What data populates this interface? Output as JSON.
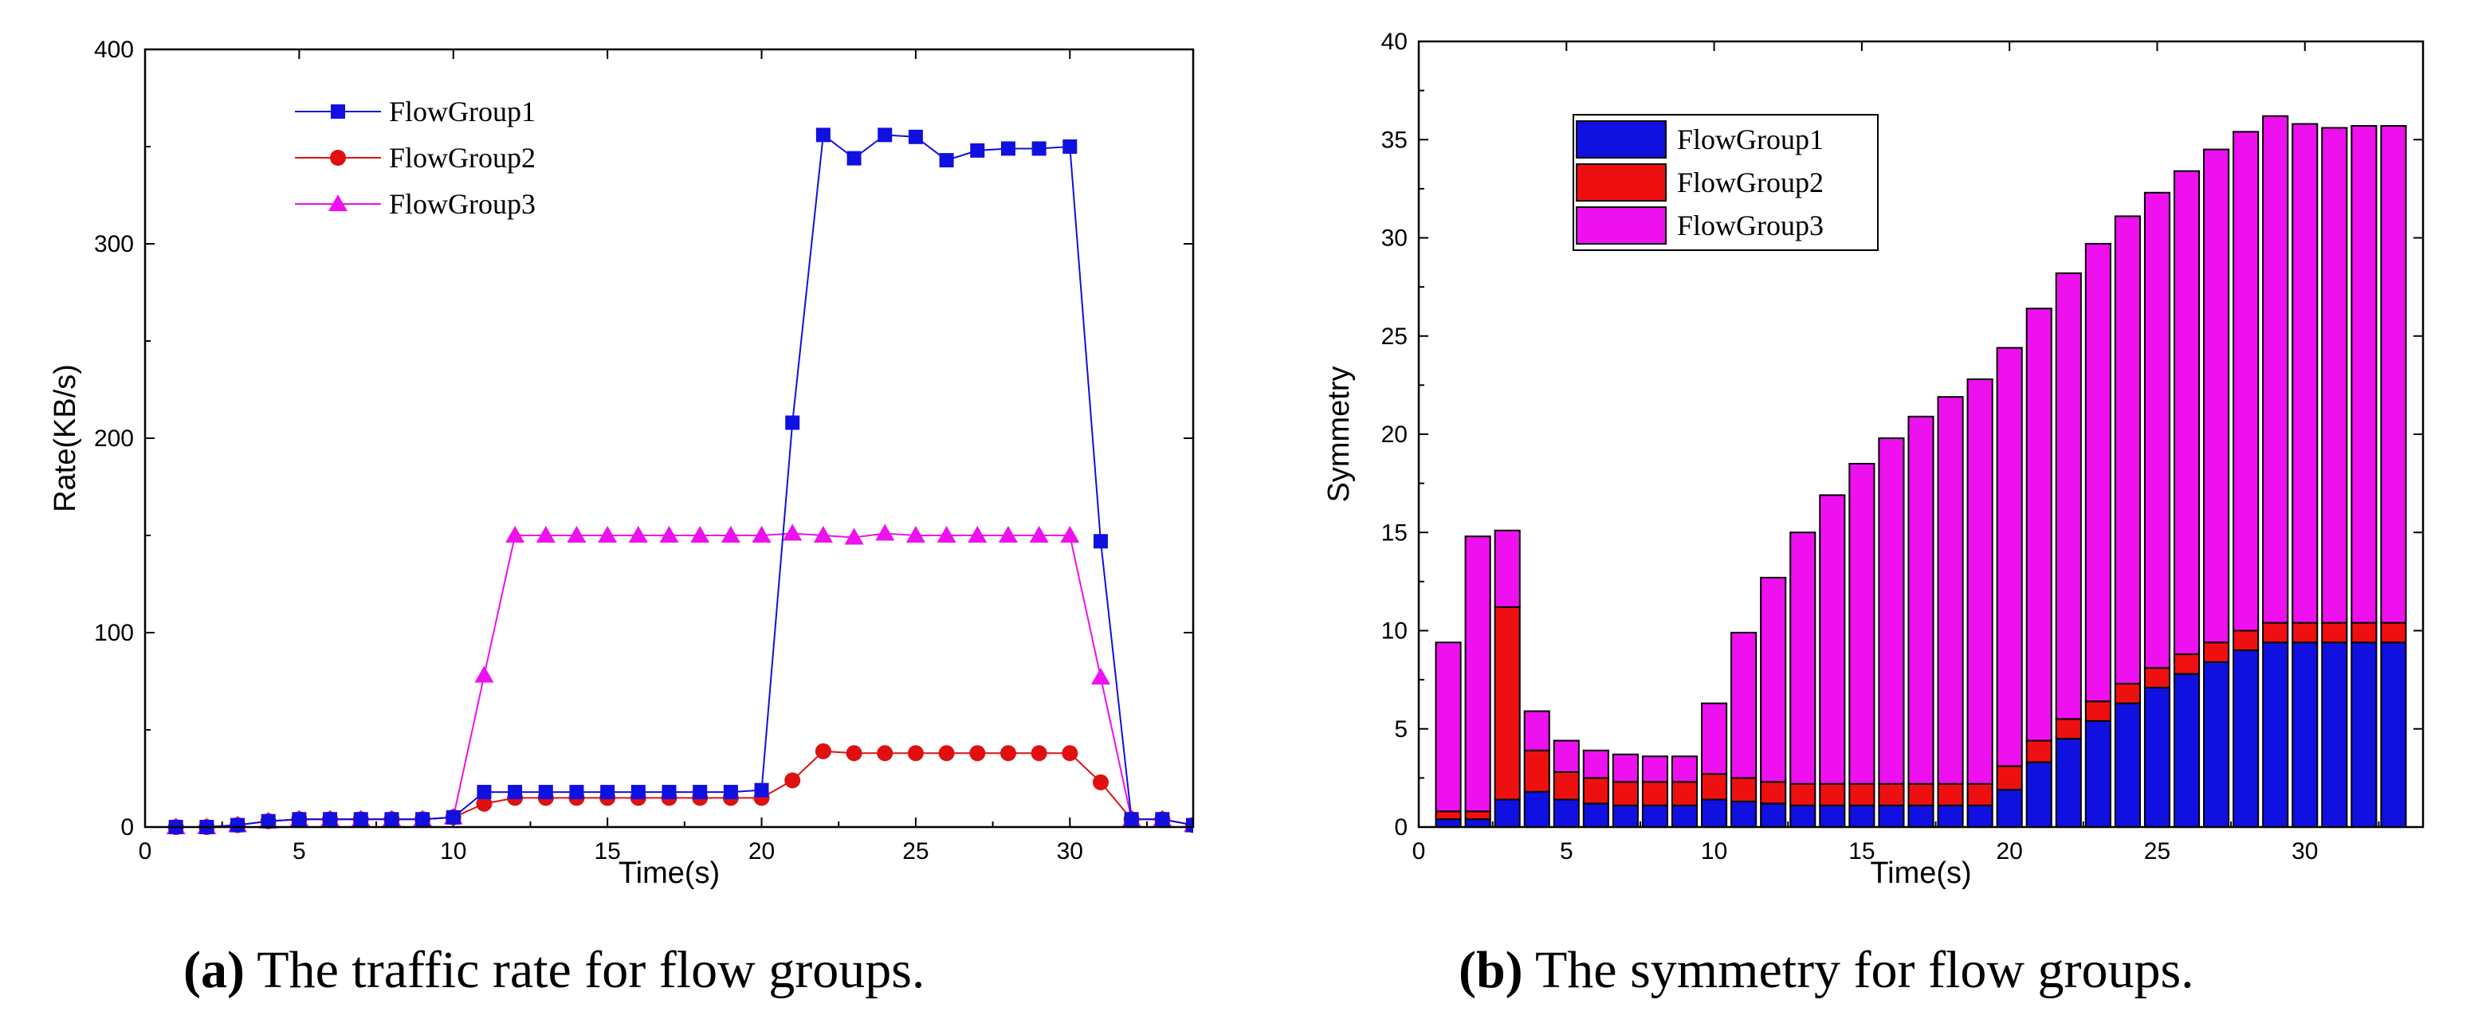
{
  "chart_data": [
    {
      "type": "line",
      "title": "",
      "xlabel": "Time(s)",
      "ylabel": "Rate(KB/s)",
      "xlim": [
        0,
        34
      ],
      "ylim": [
        0,
        400
      ],
      "xticks": [
        0,
        5,
        10,
        15,
        20,
        25,
        30
      ],
      "yticks": [
        0,
        100,
        200,
        300,
        400
      ],
      "legend_position": "top-left",
      "x": [
        1,
        2,
        3,
        4,
        5,
        6,
        7,
        8,
        9,
        10,
        11,
        12,
        13,
        14,
        15,
        16,
        17,
        18,
        19,
        20,
        21,
        22,
        23,
        24,
        25,
        26,
        27,
        28,
        29,
        30,
        31,
        32,
        33,
        34
      ],
      "series": [
        {
          "name": "FlowGroup1",
          "color": "#1010e0",
          "marker": "square",
          "values": [
            0,
            0,
            1,
            3,
            4,
            4,
            4,
            4,
            4,
            5,
            18,
            18,
            18,
            18,
            18,
            18,
            18,
            18,
            18,
            19,
            208,
            356,
            344,
            356,
            355,
            343,
            348,
            349,
            349,
            350,
            147,
            4,
            4,
            1
          ]
        },
        {
          "name": "FlowGroup2",
          "color": "#e01010",
          "marker": "circle",
          "values": [
            0,
            0,
            1,
            3,
            4,
            4,
            4,
            4,
            4,
            5,
            12,
            15,
            15,
            15,
            15,
            15,
            15,
            15,
            15,
            15,
            24,
            39,
            38,
            38,
            38,
            38,
            38,
            38,
            38,
            38,
            23,
            4,
            4,
            1
          ]
        },
        {
          "name": "FlowGroup3",
          "color": "#ee10ee",
          "marker": "triangle",
          "values": [
            0,
            0,
            1,
            3,
            4,
            4,
            4,
            4,
            4,
            5,
            78,
            150,
            150,
            150,
            150,
            150,
            150,
            150,
            150,
            150,
            151,
            150,
            149,
            151,
            150,
            150,
            150,
            150,
            150,
            150,
            77,
            4,
            4,
            1
          ]
        }
      ]
    },
    {
      "type": "bar",
      "stacked": true,
      "title": "",
      "xlabel": "Time(s)",
      "ylabel": "Symmetry",
      "xlim": [
        0,
        34
      ],
      "ylim": [
        0,
        40
      ],
      "xticks": [
        0,
        5,
        10,
        15,
        20,
        25,
        30
      ],
      "yticks": [
        0,
        5,
        10,
        15,
        20,
        25,
        30,
        35,
        40
      ],
      "legend_position": "top-left",
      "x": [
        1,
        2,
        3,
        4,
        5,
        6,
        7,
        8,
        9,
        10,
        11,
        12,
        13,
        14,
        15,
        16,
        17,
        18,
        19,
        20,
        21,
        22,
        23,
        24,
        25,
        26,
        27,
        28,
        29,
        30,
        31,
        32,
        33
      ],
      "totals": [
        9.4,
        14.8,
        15.1,
        5.9,
        4.4,
        3.9,
        3.7,
        3.6,
        3.6,
        6.3,
        9.9,
        12.7,
        15.0,
        16.9,
        18.5,
        19.8,
        20.9,
        21.9,
        22.8,
        24.4,
        26.4,
        28.2,
        29.7,
        31.1,
        32.3,
        33.4,
        34.5,
        35.4,
        36.2,
        35.8,
        35.6,
        35.7,
        35.7
      ],
      "series": [
        {
          "name": "FlowGroup1",
          "color": "#1010e0",
          "values": [
            0.4,
            0.4,
            1.4,
            1.8,
            1.4,
            1.2,
            1.1,
            1.1,
            1.1,
            1.4,
            1.3,
            1.2,
            1.1,
            1.1,
            1.1,
            1.1,
            1.1,
            1.1,
            1.1,
            1.9,
            3.3,
            4.5,
            5.4,
            6.3,
            7.1,
            7.8,
            8.4,
            9.0,
            9.4,
            9.4,
            9.4,
            9.4,
            9.4
          ]
        },
        {
          "name": "FlowGroup2",
          "color": "#ee1010",
          "values": [
            0.4,
            0.4,
            9.8,
            2.1,
            1.4,
            1.3,
            1.2,
            1.2,
            1.2,
            1.3,
            1.2,
            1.1,
            1.1,
            1.1,
            1.1,
            1.1,
            1.1,
            1.1,
            1.1,
            1.2,
            1.1,
            1.0,
            1.0,
            1.0,
            1.0,
            1.0,
            1.0,
            1.0,
            1.0,
            1.0,
            1.0,
            1.0,
            1.0
          ]
        },
        {
          "name": "FlowGroup3",
          "color": "#ee10ee",
          "values": [
            8.6,
            14.0,
            3.9,
            2.0,
            1.6,
            1.4,
            1.4,
            1.3,
            1.3,
            3.6,
            7.4,
            10.4,
            12.8,
            14.7,
            16.3,
            17.6,
            18.7,
            19.7,
            20.6,
            21.3,
            22.0,
            22.7,
            23.3,
            23.8,
            24.2,
            24.6,
            25.1,
            25.4,
            25.8,
            25.4,
            25.2,
            25.3,
            25.3
          ]
        }
      ]
    }
  ],
  "captions": {
    "a_tag": "(a)",
    "a_text": "The traffic rate for flow groups.",
    "b_tag": "(b)",
    "b_text": "The symmetry for flow groups."
  }
}
